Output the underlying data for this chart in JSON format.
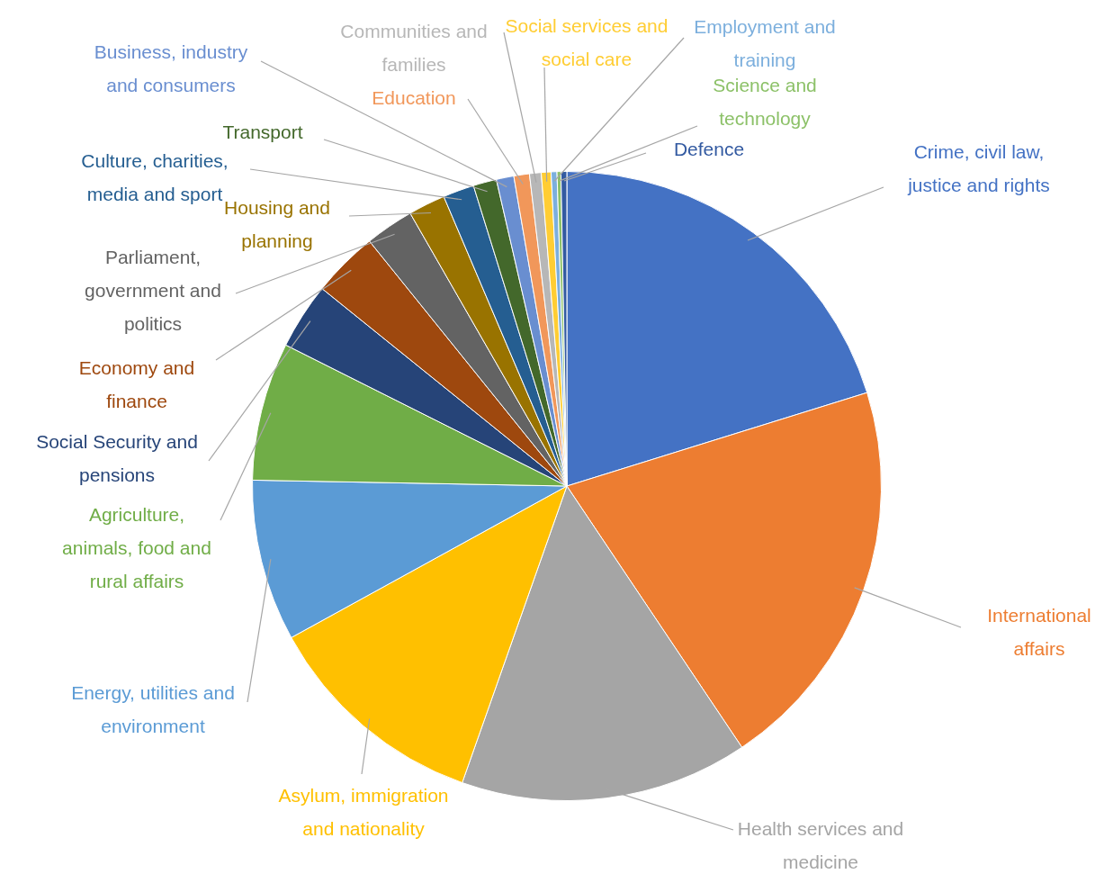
{
  "chart_data": {
    "type": "pie",
    "legend": false,
    "categories": [
      "Crime, civil law, justice and rights",
      "International affairs",
      "Health services and medicine",
      "Asylum, immigration and nationality",
      "Energy, utilities and environment",
      "Agriculture, animals, food and rural affairs",
      "Social Security and pensions",
      "Economy and finance",
      "Parliament, government and politics",
      "Housing and planning",
      "Culture, charities, media and sport",
      "Transport",
      "Business, industry and consumers",
      "Education",
      "Communities and families",
      "Social services and social care",
      "Employment and training",
      "Science and technology",
      "Defence"
    ],
    "values": [
      20.2,
      20.4,
      14.8,
      11.6,
      8.3,
      7.1,
      3.4,
      3.4,
      2.5,
      1.9,
      1.6,
      1.2,
      0.9,
      0.8,
      0.6,
      0.5,
      0.3,
      0.2,
      0.3
    ],
    "colors": [
      "#4472c4",
      "#ed7d31",
      "#a5a5a5",
      "#ffc000",
      "#5b9bd5",
      "#70ad47",
      "#264478",
      "#9e480e",
      "#636363",
      "#997300",
      "#255e91",
      "#43682b",
      "#698ed0",
      "#f1975a",
      "#b7b7b7",
      "#ffcd33",
      "#7cafdd",
      "#8cc168",
      "#335aa1"
    ]
  }
}
